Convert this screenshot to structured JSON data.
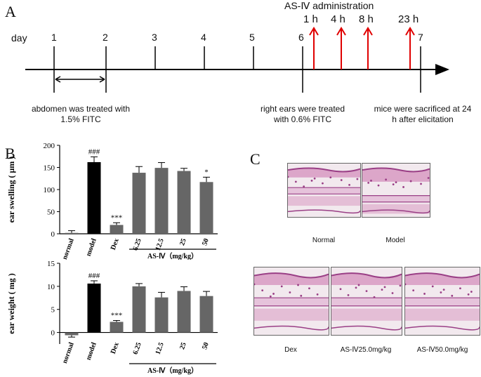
{
  "panels": {
    "a": "A",
    "b": "B",
    "c": "C"
  },
  "timeline": {
    "day_label": "day",
    "days": [
      "1",
      "2",
      "3",
      "4",
      "5",
      "6",
      "7"
    ],
    "administration_label": "AS-Ⅳ administration",
    "hours": [
      "1 h",
      "4 h",
      "8 h",
      "23 h"
    ],
    "captions": {
      "fitc_abdomen": "abdomen was treated with 1.5% FITC",
      "fitc_ear": "right ears were treated with 0.6% FITC",
      "sacrifice": "mice were sacrificed at 24 h after elicitation"
    },
    "colors": {
      "arrow": "#e00000",
      "axis": "#000000"
    }
  },
  "chart_data": [
    {
      "type": "bar",
      "ylabel": "ear swelling ( μm )",
      "ylim": [
        0,
        200
      ],
      "yticks": [
        "0",
        "50",
        "100",
        "150",
        "200"
      ],
      "categories": [
        "normal",
        "model",
        "Dex",
        "6.25",
        "12.5",
        "25",
        "50"
      ],
      "values": [
        2,
        162,
        20,
        138,
        149,
        142,
        117
      ],
      "errors": [
        5,
        12,
        5,
        14,
        12,
        6,
        11
      ],
      "annotations": [
        "",
        "###",
        "***",
        "",
        "",
        "",
        "*"
      ],
      "group_label": "AS-Ⅳ（mg/kg）",
      "colors": [
        "#666666",
        "#000000",
        "#666666",
        "#666666",
        "#666666",
        "#666666",
        "#666666"
      ]
    },
    {
      "type": "bar",
      "ylabel": "ear weight ( mg )",
      "ylim": [
        -2.5,
        15
      ],
      "yticks": [
        "0",
        "5",
        "10",
        "15"
      ],
      "categories": [
        "normal",
        "model",
        "Dex",
        "6.25",
        "12.5",
        "25",
        "50"
      ],
      "values": [
        -0.6,
        10.6,
        2.3,
        10.0,
        7.6,
        9.0,
        7.9
      ],
      "errors": [
        0.4,
        0.6,
        0.3,
        0.6,
        1.1,
        0.9,
        1.0
      ],
      "annotations": [
        "",
        "###",
        "***",
        "",
        "",
        "",
        ""
      ],
      "group_label": "AS-Ⅳ（mg/kg）",
      "colors": [
        "#666666",
        "#000000",
        "#666666",
        "#666666",
        "#666666",
        "#666666",
        "#666666"
      ]
    }
  ],
  "histology": {
    "labels": [
      "Normal",
      "Model",
      "Dex",
      "AS-Ⅳ25.0mg/kg",
      "AS-Ⅳ50.0mg/kg"
    ],
    "colors": {
      "background": "#f2e9ee",
      "tissue": "#d89ac2",
      "dark": "#9a3f86",
      "cartilage": "#e6c3db"
    }
  }
}
